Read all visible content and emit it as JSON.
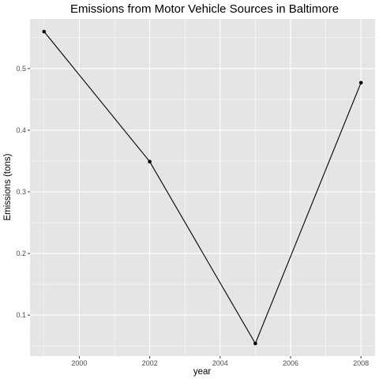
{
  "chart_data": {
    "type": "line",
    "title": "Emissions from Motor Vehicle Sources in Baltimore",
    "xlabel": "year",
    "ylabel": "Emissions (tons)",
    "x": [
      1999,
      2002,
      2005,
      2008
    ],
    "series": [
      {
        "values": [
          0.56,
          0.349,
          0.054,
          0.477
        ]
      }
    ],
    "xlim": [
      1998.6,
      2008.4
    ],
    "ylim": [
      0.0335,
      0.5805
    ],
    "x_ticks": [
      2000,
      2002,
      2004,
      2006,
      2008
    ],
    "x_tick_labels": [
      "2000",
      "2002",
      "2004",
      "2006",
      "2008"
    ],
    "y_ticks": [
      0.1,
      0.2,
      0.3,
      0.4,
      0.5
    ],
    "y_tick_labels": [
      "0.1",
      "0.2",
      "0.3",
      "0.4",
      "0.5"
    ],
    "grid": true,
    "legend": "none",
    "colors": {
      "panel": "#e5e5e5",
      "grid": "#ffffff",
      "line": "#000000",
      "point": "#000000"
    }
  }
}
